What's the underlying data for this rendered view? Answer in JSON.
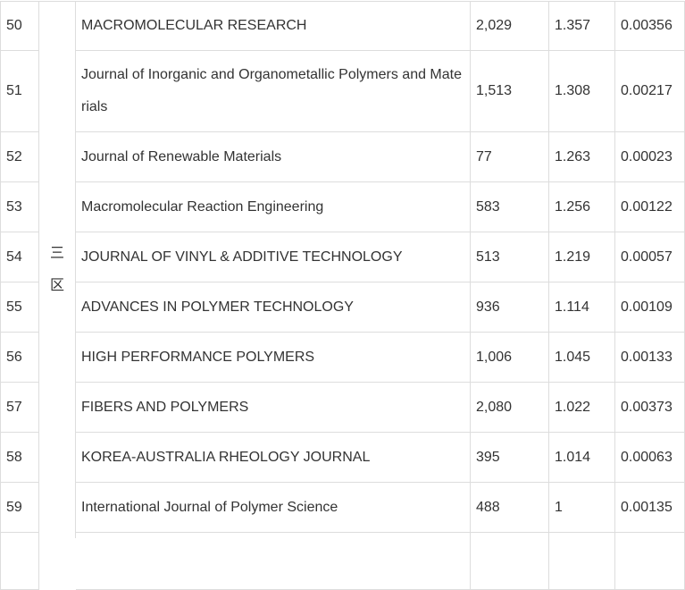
{
  "table": {
    "zone": "三区",
    "rows": [
      [
        "50",
        "MACROMOLECULAR RESEARCH",
        "2,029",
        "1.357",
        "0.00356"
      ],
      [
        "51",
        "Journal of Inorganic and Organometallic Polymers and Materials",
        "1,513",
        "1.308",
        "0.00217"
      ],
      [
        "52",
        "Journal of Renewable Materials",
        "77",
        "1.263",
        "0.00023"
      ],
      [
        "53",
        "Macromolecular Reaction Engineering",
        "583",
        "1.256",
        "0.00122"
      ],
      [
        "54",
        "JOURNAL OF VINYL & ADDITIVE TECHNOLOGY",
        "513",
        "1.219",
        "0.00057"
      ],
      [
        "55",
        "ADVANCES IN POLYMER TECHNOLOGY",
        "936",
        "1.114",
        "0.00109"
      ],
      [
        "56",
        "HIGH PERFORMANCE POLYMERS",
        "1,006",
        "1.045",
        "0.00133"
      ],
      [
        "57",
        "FIBERS AND POLYMERS",
        "2,080",
        "1.022",
        "0.00373"
      ],
      [
        "58",
        "KOREA-AUSTRALIA RHEOLOGY JOURNAL",
        "395",
        "1.014",
        "0.00063"
      ],
      [
        "59",
        "International Journal of Polymer Science",
        "488",
        "1",
        "0.00135"
      ]
    ]
  }
}
